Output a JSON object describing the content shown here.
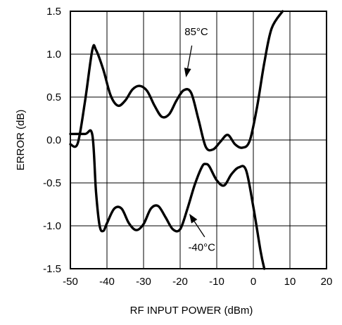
{
  "chart_data": {
    "type": "line",
    "title": "",
    "xlabel": "RF INPUT POWER (dBm)",
    "ylabel": "ERROR (dB)",
    "xlim": [
      -50,
      20
    ],
    "ylim": [
      -1.5,
      1.5
    ],
    "grid": true,
    "x_ticks": [
      -50,
      -40,
      -30,
      -20,
      -10,
      0,
      10,
      20
    ],
    "x_tick_labels": [
      "-50",
      "-40",
      "-30",
      "-20",
      "-10",
      "0",
      "10",
      "20"
    ],
    "y_ticks": [
      1.5,
      1.0,
      0.5,
      0.0,
      -0.5,
      -1.0,
      -1.5
    ],
    "y_tick_labels": [
      "1.5",
      "1.0",
      "0.5",
      "0.0",
      "-0.5",
      "-1.0",
      "-1.5"
    ],
    "series": [
      {
        "name": "85°C",
        "x": [
          -50,
          -48,
          -46,
          -44,
          -43,
          -41,
          -39,
          -37,
          -35,
          -33,
          -31,
          -29,
          -27,
          -25,
          -23,
          -21,
          -19,
          -17,
          -15,
          -13,
          -11,
          -9,
          -7,
          -5,
          -3,
          -1,
          1,
          3,
          5,
          8
        ],
        "y": [
          -0.05,
          -0.04,
          0.45,
          1.05,
          1.05,
          0.82,
          0.52,
          0.4,
          0.46,
          0.59,
          0.63,
          0.57,
          0.4,
          0.27,
          0.3,
          0.46,
          0.58,
          0.55,
          0.24,
          -0.08,
          -0.11,
          -0.02,
          0.06,
          -0.05,
          -0.09,
          -0.01,
          0.38,
          0.9,
          1.3,
          1.5
        ]
      },
      {
        "name": "-40°C",
        "x": [
          -50,
          -46,
          -44,
          -43,
          -42,
          -41,
          -40,
          -38,
          -36,
          -34,
          -32,
          -30,
          -28,
          -26,
          -24,
          -22,
          -20,
          -18,
          -16,
          -14,
          -13,
          -12,
          -10,
          -8,
          -6,
          -4,
          -2,
          0,
          2,
          3
        ],
        "y": [
          0.07,
          0.07,
          0.06,
          -0.6,
          -1.0,
          -1.06,
          -0.97,
          -0.8,
          -0.8,
          -0.97,
          -1.05,
          -0.98,
          -0.8,
          -0.77,
          -0.9,
          -1.04,
          -1.04,
          -0.8,
          -0.52,
          -0.31,
          -0.28,
          -0.31,
          -0.47,
          -0.53,
          -0.4,
          -0.32,
          -0.35,
          -0.78,
          -1.3,
          -1.5
        ]
      }
    ],
    "annotations": [
      {
        "text": "85°C",
        "series": "85°C"
      },
      {
        "text": "-40°C",
        "series": "-40°C"
      }
    ]
  }
}
